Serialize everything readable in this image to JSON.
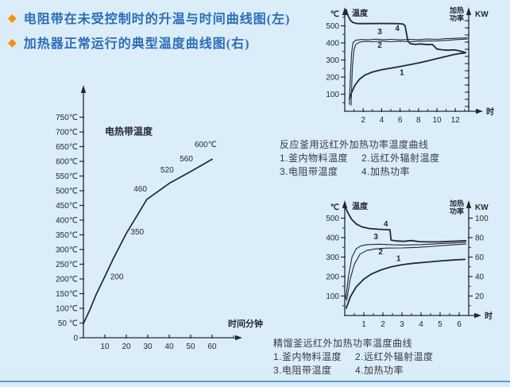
{
  "page": {
    "background": "#dbedf9",
    "bottom_rule_color": "#5b9ac9",
    "ink_color": "#23282d"
  },
  "header": {
    "bullet_glyph": "◆",
    "bullet_color": "#f2930d",
    "text_color": "#2a6cb8",
    "bullets": [
      {
        "text": "电阻带在未受控制时的升温与时间曲线图(左)"
      },
      {
        "text": "加热器正常运行的典型温度曲线图(右)"
      }
    ]
  },
  "captions": [
    {
      "title": "反应釜用远红外加热功率温度曲线",
      "items": [
        "1.釜内物料温度",
        "2.远红外辐射温度",
        "3.电阻带温度",
        "4.加热功率"
      ]
    },
    {
      "title": "精馏釜远红外加热功率温度曲线",
      "items": [
        "1.釜内物料温度",
        "2.远红外辐射温度",
        "3.电阻带温度",
        "4.加热功率"
      ]
    }
  ],
  "chart_data": [
    {
      "id": "heating-tape-uncontrolled",
      "type": "line",
      "title": "电阻带在未受控制时的升温与时间曲线",
      "inner_label": "电热带温度",
      "xlabel": "时间分钟",
      "ylabel": "℃",
      "xlim": [
        0,
        70
      ],
      "ylim": [
        0,
        800
      ],
      "x_axis": {
        "title": "时间分钟",
        "ticks": [
          {
            "v": 10,
            "label": "10"
          },
          {
            "v": 20,
            "label": "20"
          },
          {
            "v": 30,
            "label": "30"
          },
          {
            "v": 40,
            "label": "40"
          },
          {
            "v": 50,
            "label": "50"
          },
          {
            "v": 60,
            "label": "60"
          }
        ],
        "minor": [
          70
        ]
      },
      "y_axis": {
        "ticks": [
          {
            "v": 0,
            "label": "0"
          },
          {
            "v": 50,
            "label": "50 ℃"
          },
          {
            "v": 100,
            "label": "100℃"
          },
          {
            "v": 150,
            "label": "150℃"
          },
          {
            "v": 200,
            "label": "200℃"
          },
          {
            "v": 250,
            "label": "250℃"
          },
          {
            "v": 300,
            "label": "300℃"
          },
          {
            "v": 350,
            "label": "350℃"
          },
          {
            "v": 400,
            "label": "400℃"
          },
          {
            "v": 450,
            "label": "450℃"
          },
          {
            "v": 500,
            "label": "500℃"
          },
          {
            "v": 550,
            "label": "550℃"
          },
          {
            "v": 600,
            "label": "600℃"
          },
          {
            "v": 650,
            "label": "650℃"
          },
          {
            "v": 700,
            "label": "700℃"
          },
          {
            "v": 750,
            "label": "750℃"
          }
        ],
        "minor": []
      },
      "key_values": [
        [
          10,
          200
        ],
        [
          20,
          350
        ],
        [
          30,
          460
        ],
        [
          40,
          520
        ],
        [
          50,
          560
        ],
        [
          60,
          600
        ]
      ],
      "series": [
        {
          "id": "tape-temp",
          "name": "电热带温度",
          "w": 1.7,
          "points": [
            [
              0,
              48
            ],
            [
              3,
              95
            ],
            [
              6,
              148
            ],
            [
              10,
              208
            ],
            [
              14,
              270
            ],
            [
              20,
              355
            ],
            [
              25,
              415
            ],
            [
              29.5,
              470
            ],
            [
              40,
              525
            ],
            [
              50,
              565
            ],
            [
              60,
              607
            ]
          ]
        }
      ],
      "annotations": [
        {
          "text": "200",
          "x": 12.5,
          "y": 198,
          "anchor": "start"
        },
        {
          "text": "350",
          "x": 22,
          "y": 352,
          "anchor": "start"
        },
        {
          "text": "460",
          "x": 26.5,
          "y": 497,
          "anchor": "middle"
        },
        {
          "text": "520",
          "x": 39,
          "y": 562,
          "anchor": "middle"
        },
        {
          "text": "560",
          "x": 48,
          "y": 600,
          "anchor": "middle"
        },
        {
          "text": "600℃",
          "x": 57,
          "y": 648,
          "anchor": "middle"
        },
        {
          "text": "电热带温度",
          "x": 10,
          "y": 690,
          "anchor": "start",
          "bold": true,
          "size": 12
        }
      ]
    },
    {
      "id": "reactor-kettle-far-infrared",
      "type": "line",
      "title": "反应釜用远红外加热功率温度曲线",
      "xlabel": "时",
      "ylabel": "℃",
      "y2label": "KW",
      "xlim": [
        0,
        13.5
      ],
      "ylim": [
        0,
        620
      ],
      "x_axis": {
        "title": "时",
        "ticks": [
          {
            "v": 2,
            "label": "2"
          },
          {
            "v": 4,
            "label": "4"
          },
          {
            "v": 6,
            "label": "6"
          },
          {
            "v": 8,
            "label": "8"
          },
          {
            "v": 10,
            "label": "10"
          },
          {
            "v": 12,
            "label": "12"
          }
        ],
        "minor": [
          1,
          3,
          5,
          7,
          9,
          11,
          13
        ]
      },
      "y_axis": {
        "unit": "℃",
        "title": "温度",
        "ticks": [
          {
            "v": 100,
            "label": "100"
          },
          {
            "v": 200,
            "label": "200"
          },
          {
            "v": 300,
            "label": "300"
          },
          {
            "v": 400,
            "label": "400"
          },
          {
            "v": 500,
            "label": "500"
          }
        ],
        "minor": [
          50,
          150,
          250,
          350,
          450,
          550
        ]
      },
      "y2_axis": {
        "title_lines": [
          "加热",
          "功率"
        ],
        "unit": "KW",
        "ticks": [],
        "minor": []
      },
      "series": [
        {
          "id": "1",
          "name": "釜内物料温度",
          "w": 1.8,
          "points": [
            [
              0.5,
              72
            ],
            [
              0.75,
              110
            ],
            [
              1.1,
              152
            ],
            [
              1.6,
              188
            ],
            [
              2.2,
              212
            ],
            [
              3,
              230
            ],
            [
              4,
              243
            ],
            [
              5,
              252
            ],
            [
              6,
              262
            ],
            [
              7,
              272
            ],
            [
              8,
              283
            ],
            [
              9,
              295
            ],
            [
              10,
              308
            ],
            [
              11,
              321
            ],
            [
              11.8,
              331
            ],
            [
              12.5,
              338
            ],
            [
              13.1,
              342
            ]
          ]
        },
        {
          "id": "2",
          "name": "远红外辐射温度",
          "w": 1.1,
          "points": [
            [
              0.68,
              35
            ],
            [
              0.82,
              250
            ],
            [
              0.98,
              355
            ],
            [
              1.2,
              392
            ],
            [
              1.6,
              404
            ],
            [
              2.2,
              409
            ],
            [
              3,
              407
            ],
            [
              4,
              410
            ],
            [
              5,
              407
            ],
            [
              6,
              410
            ],
            [
              7,
              407
            ],
            [
              8,
              410
            ],
            [
              9,
              411
            ],
            [
              10,
              412
            ],
            [
              11,
              415
            ],
            [
              12,
              419
            ],
            [
              13.3,
              423
            ]
          ]
        },
        {
          "id": "3",
          "name": "电阻带温度",
          "w": 1.1,
          "points": [
            [
              0.5,
              40
            ],
            [
              0.62,
              220
            ],
            [
              0.75,
              345
            ],
            [
              0.9,
              402
            ],
            [
              1.2,
              416
            ],
            [
              1.8,
              420
            ],
            [
              2.6,
              418
            ],
            [
              3.4,
              422
            ],
            [
              4.2,
              419
            ],
            [
              5,
              421
            ],
            [
              6,
              418
            ],
            [
              7,
              421
            ],
            [
              8,
              419
            ],
            [
              9,
              423
            ],
            [
              10,
              421
            ],
            [
              11,
              425
            ],
            [
              12,
              427
            ],
            [
              13.3,
              430
            ]
          ]
        },
        {
          "id": "4",
          "name": "加热功率",
          "w": 1.8,
          "points": [
            [
              0.15,
              595
            ],
            [
              0.35,
              560
            ],
            [
              0.6,
              533
            ],
            [
              0.9,
              519
            ],
            [
              1.4,
              513
            ],
            [
              2.5,
              513
            ],
            [
              4,
              514
            ],
            [
              5.5,
              513
            ],
            [
              6.3,
              511
            ],
            [
              6.55,
              500
            ],
            [
              6.7,
              455
            ],
            [
              6.85,
              412
            ],
            [
              7.1,
              396
            ],
            [
              7.6,
              391
            ],
            [
              8.3,
              394
            ],
            [
              9,
              390
            ],
            [
              9.5,
              391
            ],
            [
              9.75,
              378
            ],
            [
              10,
              364
            ],
            [
              10.5,
              360
            ],
            [
              11.2,
              357
            ],
            [
              11.9,
              359
            ],
            [
              12.5,
              353
            ],
            [
              13.1,
              344
            ]
          ]
        }
      ],
      "annotations": [
        {
          "text": "4",
          "x": 5.7,
          "y": 470,
          "bold": true
        },
        {
          "text": "3",
          "x": 3.8,
          "y": 452,
          "bold": true
        },
        {
          "text": "2",
          "x": 3.8,
          "y": 372,
          "bold": true
        },
        {
          "text": "1",
          "x": 6.2,
          "y": 212,
          "bold": true
        }
      ]
    },
    {
      "id": "distillation-kettle-far-infrared",
      "type": "line",
      "title": "精馏釜远红外加热功率温度曲线",
      "xlabel": "时",
      "ylabel": "℃",
      "y2label": "KW",
      "xlim": [
        0,
        6.6
      ],
      "ylim": [
        0,
        620
      ],
      "y2lim": [
        0,
        124
      ],
      "x_axis": {
        "title": "时",
        "ticks": [
          {
            "v": 1,
            "label": "1"
          },
          {
            "v": 2,
            "label": "2"
          },
          {
            "v": 3,
            "label": "3"
          },
          {
            "v": 4,
            "label": "4"
          },
          {
            "v": 5,
            "label": "5"
          },
          {
            "v": 6,
            "label": "6"
          }
        ],
        "minor": [
          0.5,
          1.5,
          2.5,
          3.5,
          4.5,
          5.5
        ]
      },
      "y_axis": {
        "unit": "℃",
        "title": "温度",
        "ticks": [
          {
            "v": 100,
            "label": "100"
          },
          {
            "v": 200,
            "label": "200"
          },
          {
            "v": 300,
            "label": "300"
          },
          {
            "v": 400,
            "label": "400"
          },
          {
            "v": 500,
            "label": "500"
          }
        ],
        "minor": [
          50,
          150,
          250,
          350,
          450
        ]
      },
      "y2_axis": {
        "title_lines": [
          "加热",
          "功率"
        ],
        "unit": "KW",
        "ticks": [
          {
            "v": 20,
            "label": "20"
          },
          {
            "v": 40,
            "label": "40"
          },
          {
            "v": 60,
            "label": "60"
          },
          {
            "v": 80,
            "label": "80"
          },
          {
            "v": 100,
            "label": "100"
          }
        ],
        "minor": [
          10,
          30,
          50,
          70,
          90
        ]
      },
      "series": [
        {
          "id": "1",
          "name": "釜内物料温度",
          "w": 1.8,
          "points": [
            [
              0.08,
              38
            ],
            [
              0.3,
              97
            ],
            [
              0.6,
              147
            ],
            [
              1,
              187
            ],
            [
              1.4,
              213
            ],
            [
              1.9,
              234
            ],
            [
              2.4,
              249
            ],
            [
              3,
              261
            ],
            [
              3.6,
              268
            ],
            [
              4.3,
              274
            ],
            [
              5,
              280
            ],
            [
              5.7,
              285
            ],
            [
              6.3,
              288
            ]
          ]
        },
        {
          "id": "2",
          "name": "远红外辐射温度",
          "w": 1.1,
          "points": [
            [
              0.1,
              78
            ],
            [
              0.28,
              185
            ],
            [
              0.5,
              262
            ],
            [
              0.8,
              315
            ],
            [
              1.15,
              334
            ],
            [
              1.6,
              342
            ],
            [
              2.2,
              346
            ],
            [
              3,
              347
            ],
            [
              3.8,
              350
            ],
            [
              4.6,
              355
            ],
            [
              5.4,
              361
            ],
            [
              6.35,
              367
            ]
          ]
        },
        {
          "id": "3",
          "name": "电阻带温度",
          "w": 1.1,
          "points": [
            [
              0.05,
              85
            ],
            [
              0.2,
              205
            ],
            [
              0.38,
              300
            ],
            [
              0.6,
              343
            ],
            [
              0.85,
              358
            ],
            [
              1.2,
              364
            ],
            [
              1.8,
              366
            ],
            [
              2.5,
              363
            ],
            [
              3.2,
              362
            ],
            [
              4,
              364
            ],
            [
              4.8,
              368
            ],
            [
              5.6,
              372
            ],
            [
              6.35,
              376
            ]
          ]
        },
        {
          "id": "4",
          "name": "加热功率",
          "axis": "y2",
          "w": 1.8,
          "points": [
            [
              0,
              113
            ],
            [
              0.15,
              106
            ],
            [
              0.35,
              99
            ],
            [
              0.6,
              94
            ],
            [
              0.9,
              91
            ],
            [
              1.3,
              89.3
            ],
            [
              1.8,
              88.6
            ],
            [
              2.2,
              88.2
            ],
            [
              2.37,
              88
            ],
            [
              2.43,
              77.5
            ],
            [
              2.7,
              76.6
            ],
            [
              3.1,
              76.2
            ],
            [
              3.5,
              77
            ],
            [
              3.9,
              75.8
            ],
            [
              4.4,
              75.6
            ],
            [
              5,
              75.7
            ],
            [
              5.6,
              76.2
            ],
            [
              6.35,
              76.8
            ]
          ]
        }
      ],
      "annotations": [
        {
          "text": "4",
          "x": 2.15,
          "y": 458,
          "bold": true
        },
        {
          "text": "3",
          "x": 1.63,
          "y": 392,
          "bold": true
        },
        {
          "text": "2",
          "x": 1.88,
          "y": 314,
          "bold": true
        },
        {
          "text": "1",
          "x": 2.82,
          "y": 280,
          "bold": true
        }
      ]
    }
  ]
}
